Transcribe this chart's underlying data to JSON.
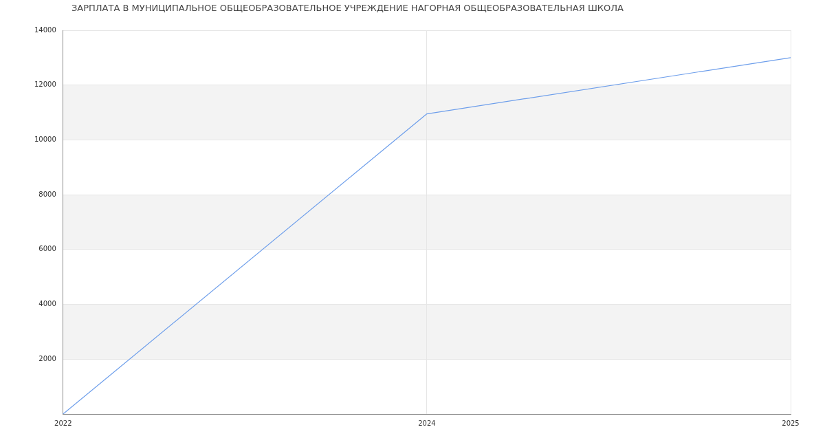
{
  "chart_data": {
    "type": "line",
    "title": "ЗАРПЛАТА В МУНИЦИПАЛЬНОЕ ОБЩЕОБРАЗОВАТЕЛЬНОЕ УЧРЕЖДЕНИЕ НАГОРНАЯ ОБЩЕОБРАЗОВАТЕЛЬНАЯ ШКОЛА",
    "categories": [
      "2022",
      "2024",
      "2025"
    ],
    "series": [
      {
        "color": "#6d9eeb",
        "values": [
          0,
          10950,
          13000
        ]
      }
    ],
    "ylim": [
      0,
      14000
    ],
    "yticks": [
      2000,
      4000,
      6000,
      8000,
      10000,
      12000,
      14000
    ],
    "grid": true,
    "marker": "none"
  }
}
